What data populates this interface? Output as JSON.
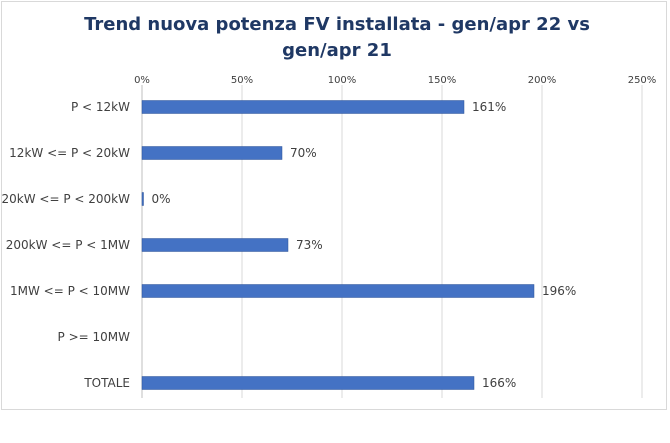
{
  "chart_data": {
    "type": "bar",
    "orientation": "horizontal",
    "title": "Trend nuova potenza FV installata - gen/apr 22 vs gen/apr 21",
    "categories": [
      "P < 12kW",
      "12kW <= P < 20kW",
      "20kW <= P < 200kW",
      "200kW <= P < 1MW",
      "1MW <= P < 10MW",
      "P >= 10MW",
      "TOTALE"
    ],
    "values": [
      161,
      70,
      0,
      73,
      196,
      null,
      166
    ],
    "data_labels": [
      "161%",
      "70%",
      "0%",
      "73%",
      "196%",
      "",
      "166%"
    ],
    "xlim": [
      0,
      250
    ],
    "xticks": [
      0,
      50,
      100,
      150,
      200,
      250
    ],
    "xtick_labels": [
      "0%",
      "50%",
      "100%",
      "150%",
      "200%",
      "250%"
    ],
    "xaxis_position": "top",
    "grid": true,
    "legend": "none",
    "bar_color": "#4472c4",
    "title_color": "#1f3864"
  }
}
